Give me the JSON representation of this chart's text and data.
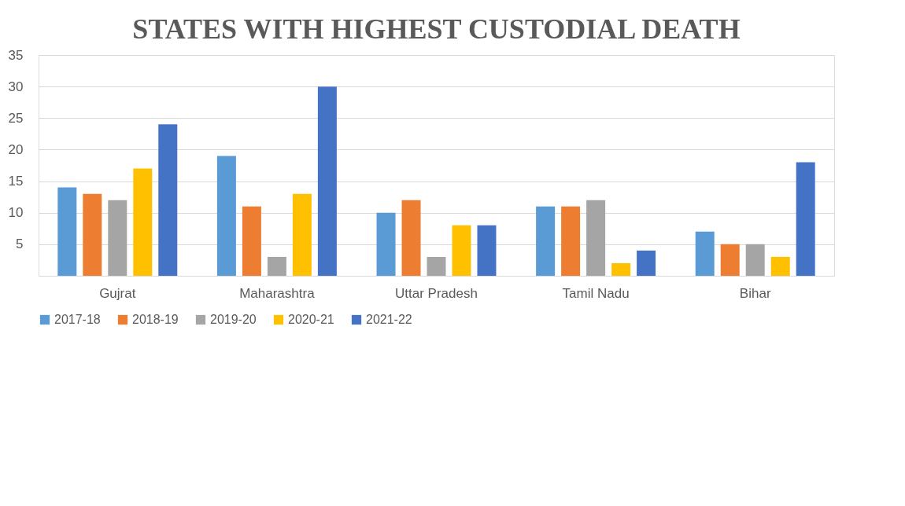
{
  "chart_data": {
    "type": "bar",
    "title": "STATES WITH HIGHEST CUSTODIAL DEATH",
    "categories": [
      "Gujrat",
      "Maharashtra",
      "Uttar Pradesh",
      "Tamil Nadu",
      "Bihar"
    ],
    "series": [
      {
        "name": "2017-18",
        "color": "#5b9bd5",
        "values": [
          14,
          19,
          10,
          11,
          7
        ]
      },
      {
        "name": "2018-19",
        "color": "#ed7d31",
        "values": [
          13,
          11,
          12,
          11,
          5
        ]
      },
      {
        "name": "2019-20",
        "color": "#a5a5a5",
        "values": [
          12,
          3,
          3,
          12,
          5
        ]
      },
      {
        "name": "2020-21",
        "color": "#ffc000",
        "values": [
          17,
          13,
          8,
          2,
          3
        ]
      },
      {
        "name": "2021-22",
        "color": "#4472c4",
        "values": [
          24,
          30,
          8,
          4,
          18
        ]
      }
    ],
    "ylim": [
      0,
      35
    ],
    "yticks": [
      {
        "value": 0,
        "label": null
      },
      5,
      10,
      15,
      20,
      25,
      30,
      35
    ],
    "grid": "y",
    "legend": "bottom"
  }
}
